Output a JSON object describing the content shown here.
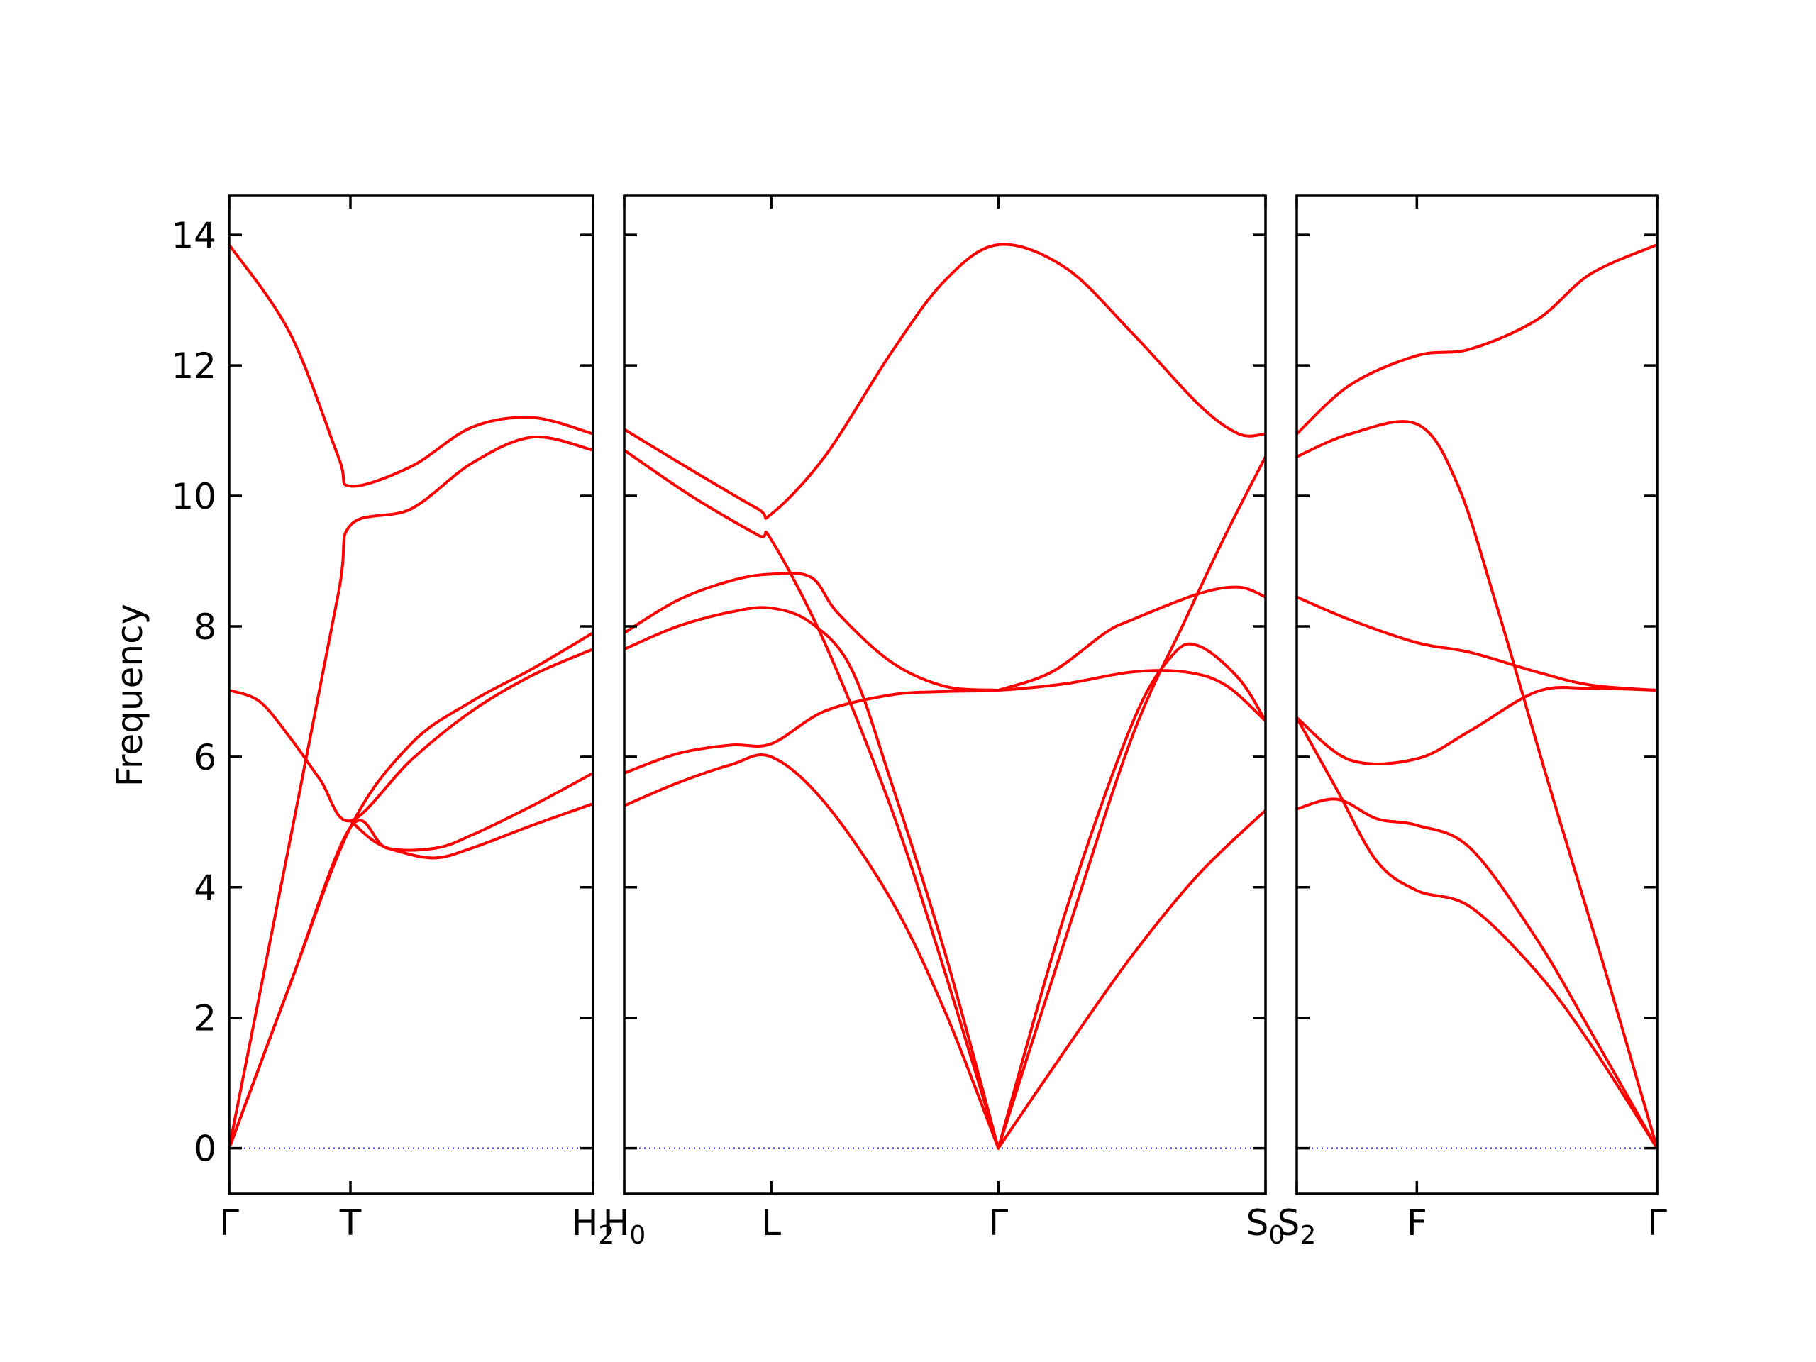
{
  "chart_data": {
    "type": "line",
    "ylabel": "Frequency",
    "ylim": [
      -0.7,
      14.6
    ],
    "yticks": [
      0,
      2,
      4,
      6,
      8,
      10,
      12,
      14
    ],
    "grid": false,
    "colors": {
      "bands": "#ff0000",
      "zero_line": "#0000cc",
      "frame": "#000000"
    },
    "panels": [
      {
        "xticks": [
          {
            "pos": 0,
            "label": "Γ"
          },
          {
            "pos": 1,
            "label": "T"
          },
          {
            "pos": 3,
            "label": "H",
            "sub": "2"
          }
        ],
        "series": [
          {
            "x": [
              0,
              0.5,
              0.9,
              1,
              1.5,
              2,
              2.5,
              3
            ],
            "y": [
              13.85,
              12.5,
              10.6,
              10.15,
              10.45,
              11.05,
              11.2,
              10.95
            ]
          },
          {
            "x": [
              0,
              0.5,
              0.9,
              1,
              1.5,
              2,
              2.5,
              3
            ],
            "y": [
              0,
              4.7,
              8.5,
              9.55,
              9.8,
              10.5,
              10.9,
              10.7
            ]
          },
          {
            "x": [
              0,
              0.25,
              0.5,
              0.75,
              1,
              1.5,
              2,
              2.5,
              3
            ],
            "y": [
              7.02,
              6.85,
              6.3,
              5.65,
              5.02,
              5.95,
              6.7,
              7.25,
              7.65
            ]
          },
          {
            "x": [
              0,
              0.5,
              1,
              1.5,
              2,
              2.5,
              3
            ],
            "y": [
              0,
              2.5,
              4.92,
              6.2,
              6.85,
              7.35,
              7.9
            ]
          },
          {
            "x": [
              0,
              0.5,
              1,
              1.3,
              1.7,
              2,
              2.5,
              3
            ],
            "y": [
              0,
              2.5,
              4.92,
              4.6,
              4.6,
              4.8,
              5.25,
              5.75
            ]
          },
          {
            "x": [
              1,
              1.2,
              1.4,
              1.7,
              2,
              2.5,
              3
            ],
            "y": [
              5.02,
              4.7,
              4.55,
              4.45,
              4.6,
              4.95,
              5.28
            ]
          }
        ]
      },
      {
        "xticks": [
          {
            "pos": 0,
            "label": "H",
            "sub": "0"
          },
          {
            "pos": 1.1,
            "label": "L"
          },
          {
            "pos": 2.8,
            "label": "Γ"
          },
          {
            "pos": 4.8,
            "label": "S",
            "sub": "0"
          }
        ],
        "series": [
          {
            "x": [
              0,
              0.5,
              1,
              1.1,
              1.5,
              2,
              2.4,
              2.8,
              3.3,
              3.8,
              4.3,
              4.6,
              4.8
            ],
            "y": [
              11.02,
              10.4,
              9.8,
              9.72,
              10.6,
              12.2,
              13.3,
              13.85,
              13.5,
              12.5,
              11.4,
              10.95,
              10.95
            ]
          },
          {
            "x": [
              0,
              0.5,
              1,
              1.1,
              1.5,
              2,
              2.4,
              2.8
            ],
            "y": [
              10.7,
              10.0,
              9.4,
              9.33,
              7.75,
              5.2,
              2.7,
              0
            ]
          },
          {
            "x": [
              0,
              0.4,
              0.8,
              1.1,
              1.4,
              1.6,
              2,
              2.4,
              2.8
            ],
            "y": [
              7.9,
              8.4,
              8.7,
              8.8,
              8.75,
              8.2,
              7.45,
              7.08,
              7.02
            ]
          },
          {
            "x": [
              0,
              0.4,
              0.8,
              1.1,
              1.4,
              1.7,
              2,
              2.4,
              2.8
            ],
            "y": [
              7.65,
              8.0,
              8.22,
              8.28,
              8.05,
              7.35,
              5.6,
              3.0,
              0
            ]
          },
          {
            "x": [
              0,
              0.4,
              0.8,
              1.1,
              1.5,
              2,
              2.4,
              2.8,
              3.3,
              3.8,
              4.2,
              4.5,
              4.8
            ],
            "y": [
              5.75,
              6.05,
              6.18,
              6.2,
              6.7,
              6.95,
              7.0,
              7.02,
              7.12,
              7.3,
              7.3,
              7.1,
              6.55
            ]
          },
          {
            "x": [
              0,
              0.4,
              0.8,
              1.1,
              1.5,
              2,
              2.4,
              2.8
            ],
            "y": [
              5.25,
              5.6,
              5.88,
              6.0,
              5.3,
              3.8,
              2.1,
              0
            ]
          },
          {
            "x": [
              2.8,
              3.2,
              3.6,
              3.8,
              4.3,
              4.6,
              4.8
            ],
            "y": [
              7.02,
              7.3,
              7.9,
              8.1,
              8.5,
              8.6,
              8.45
            ]
          },
          {
            "x": [
              2.8,
              3.3,
              3.8,
              4.2,
              4.5,
              4.8
            ],
            "y": [
              0,
              3.2,
              6.3,
              8.1,
              9.4,
              10.6
            ]
          },
          {
            "x": [
              2.8,
              3.3,
              3.8,
              4.1,
              4.3,
              4.6,
              4.8
            ],
            "y": [
              0,
              3.6,
              6.5,
              7.55,
              7.7,
              7.2,
              6.55
            ]
          },
          {
            "x": [
              2.8,
              3.3,
              3.8,
              4.3,
              4.8
            ],
            "y": [
              0,
              1.5,
              2.95,
              4.2,
              5.18
            ]
          }
        ]
      },
      {
        "xticks": [
          {
            "pos": 0,
            "label": "S",
            "sub": "2"
          },
          {
            "pos": 0.9,
            "label": "F"
          },
          {
            "pos": 2.7,
            "label": "Γ"
          }
        ],
        "series": [
          {
            "x": [
              0,
              0.4,
              0.9,
              1.3,
              1.8,
              2.2,
              2.7
            ],
            "y": [
              10.95,
              11.7,
              12.15,
              12.25,
              12.7,
              13.4,
              13.85
            ]
          },
          {
            "x": [
              0,
              0.4,
              0.9,
              1.2,
              1.5,
              1.9,
              2.3,
              2.7
            ],
            "y": [
              10.6,
              10.95,
              11.1,
              10.2,
              8.3,
              5.5,
              2.8,
              0
            ]
          },
          {
            "x": [
              0,
              0.4,
              0.9,
              1.3,
              1.8,
              2.2,
              2.7
            ],
            "y": [
              8.45,
              8.1,
              7.75,
              7.6,
              7.3,
              7.1,
              7.02
            ]
          },
          {
            "x": [
              0,
              0.4,
              0.9,
              1.3,
              1.8,
              2.2,
              2.7
            ],
            "y": [
              6.6,
              5.95,
              5.97,
              6.4,
              7.0,
              7.05,
              7.02
            ]
          },
          {
            "x": [
              0,
              0.3,
              0.6,
              0.9,
              1.3,
              1.8,
              2.2,
              2.7
            ],
            "y": [
              5.2,
              5.35,
              5.05,
              4.95,
              4.6,
              3.2,
              1.8,
              0
            ]
          },
          {
            "x": [
              0,
              0.3,
              0.6,
              0.9,
              1.3,
              1.8,
              2.2,
              2.7
            ],
            "y": [
              6.6,
              5.5,
              4.4,
              3.95,
              3.7,
              2.7,
              1.6,
              0
            ]
          }
        ]
      }
    ]
  }
}
